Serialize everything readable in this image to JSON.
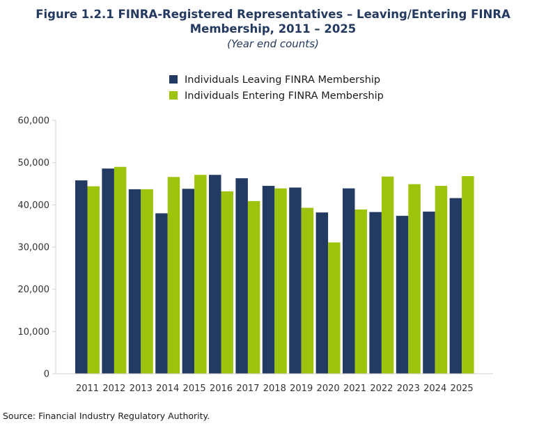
{
  "title": "Figure 1.2.1 FINRA-Registered Representatives – Leaving/Entering FINRA Membership, 2011 – 2025",
  "subtitle": "(Year end counts)",
  "source": "Source: Financial Industry Regulatory Authority.",
  "colors": {
    "leaving": "#233a62",
    "entering": "#9dc40b"
  },
  "chart_data": {
    "type": "bar",
    "categories": [
      "2011",
      "2012",
      "2013",
      "2014",
      "2015",
      "2016",
      "2017",
      "2018",
      "2019",
      "2020",
      "2021",
      "2022",
      "2023",
      "2024",
      "2025"
    ],
    "series": [
      {
        "name": "Individuals Leaving FINRA Membership",
        "values": [
          45800,
          48600,
          43700,
          38000,
          43800,
          47100,
          46300,
          44500,
          44100,
          38200,
          43900,
          38300,
          37400,
          38400,
          41600
        ]
      },
      {
        "name": "Individuals Entering FINRA Membership",
        "values": [
          44400,
          49000,
          43700,
          46600,
          47100,
          43200,
          40900,
          43900,
          39300,
          31100,
          38900,
          46700,
          44900,
          44500,
          46800
        ]
      }
    ],
    "ylim": [
      0,
      60000
    ],
    "yticks": [
      "0",
      "10,000",
      "20,000",
      "30,000",
      "40,000",
      "50,000",
      "60,000"
    ],
    "ytick_values": [
      0,
      10000,
      20000,
      30000,
      40000,
      50000,
      60000
    ],
    "legend": "top-center",
    "grid": false
  }
}
